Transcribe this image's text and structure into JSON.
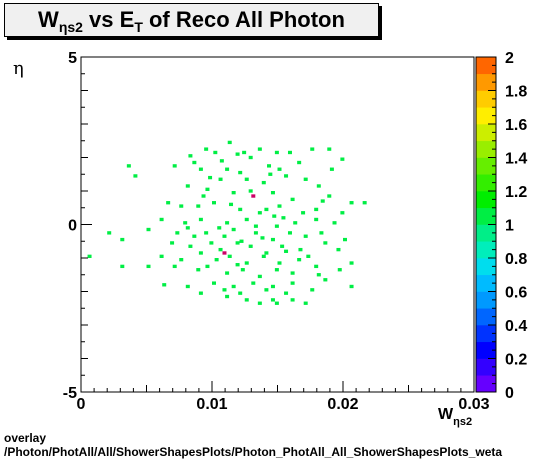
{
  "title": {
    "main": "W",
    "sub": "ηs2",
    "middle": " vs E",
    "sub2": "T",
    "rest": " of Reco All Photon"
  },
  "footer": {
    "line1": "overlay",
    "line2": "/Photon/PhotAll/All/ShowerShapesPlots/Photon_PhotAll_All_ShowerShapesPlots_weta"
  },
  "chart_data": {
    "type": "heatmap",
    "title": "W_ηs2 vs E_T of Reco All Photon",
    "xlabel": "W_ηs2",
    "ylabel": "η",
    "xlim": [
      0,
      0.03
    ],
    "ylim": [
      -5,
      5
    ],
    "x_ticks": [
      "0",
      "0.01",
      "0.02",
      "0.03"
    ],
    "y_ticks": [
      "-5",
      "0",
      "5"
    ],
    "colorbar": {
      "range": [
        0,
        2
      ],
      "ticks": [
        "0",
        "0.2",
        "0.4",
        "0.6",
        "0.8",
        "1",
        "1.2",
        "1.4",
        "1.6",
        "1.8",
        "2"
      ]
    },
    "grid": false,
    "entries": [
      {
        "x": 0.0094,
        "y": 2.2,
        "z": 1
      },
      {
        "x": 0.0101,
        "y": 2.1,
        "z": 1
      },
      {
        "x": 0.0112,
        "y": 2.4,
        "z": 1
      },
      {
        "x": 0.0118,
        "y": 2.05,
        "z": 1
      },
      {
        "x": 0.0123,
        "y": 2.1,
        "z": 1
      },
      {
        "x": 0.0082,
        "y": 2.0,
        "z": 1
      },
      {
        "x": 0.0085,
        "y": 1.8,
        "z": 1
      },
      {
        "x": 0.0135,
        "y": 2.2,
        "z": 1
      },
      {
        "x": 0.0148,
        "y": 2.1,
        "z": 1
      },
      {
        "x": 0.0158,
        "y": 2.1,
        "z": 1
      },
      {
        "x": 0.0175,
        "y": 2.2,
        "z": 1
      },
      {
        "x": 0.0188,
        "y": 2.2,
        "z": 1
      },
      {
        "x": 0.0198,
        "y": 1.9,
        "z": 1
      },
      {
        "x": 0.007,
        "y": 1.7,
        "z": 1
      },
      {
        "x": 0.0035,
        "y": 1.7,
        "z": 1
      },
      {
        "x": 0.004,
        "y": 1.4,
        "z": 1
      },
      {
        "x": 0.009,
        "y": 1.6,
        "z": 1
      },
      {
        "x": 0.011,
        "y": 1.6,
        "z": 1
      },
      {
        "x": 0.012,
        "y": 1.5,
        "z": 1
      },
      {
        "x": 0.0142,
        "y": 1.7,
        "z": 1
      },
      {
        "x": 0.015,
        "y": 1.6,
        "z": 1
      },
      {
        "x": 0.0165,
        "y": 1.8,
        "z": 1
      },
      {
        "x": 0.019,
        "y": 1.6,
        "z": 1
      },
      {
        "x": 0.0105,
        "y": 1.3,
        "z": 1
      },
      {
        "x": 0.0125,
        "y": 1.3,
        "z": 1
      },
      {
        "x": 0.0138,
        "y": 1.2,
        "z": 1
      },
      {
        "x": 0.0155,
        "y": 1.4,
        "z": 1
      },
      {
        "x": 0.017,
        "y": 1.3,
        "z": 1
      },
      {
        "x": 0.018,
        "y": 1.1,
        "z": 1
      },
      {
        "x": 0.0095,
        "y": 1.0,
        "z": 1
      },
      {
        "x": 0.008,
        "y": 1.1,
        "z": 1
      },
      {
        "x": 0.0115,
        "y": 0.9,
        "z": 1
      },
      {
        "x": 0.0128,
        "y": 0.95,
        "z": 1
      },
      {
        "x": 0.013,
        "y": 0.8,
        "z": 2
      },
      {
        "x": 0.0145,
        "y": 0.9,
        "z": 1
      },
      {
        "x": 0.016,
        "y": 0.7,
        "z": 1
      },
      {
        "x": 0.0188,
        "y": 0.8,
        "z": 1
      },
      {
        "x": 0.0205,
        "y": 0.6,
        "z": 1
      },
      {
        "x": 0.0215,
        "y": 0.6,
        "z": 1
      },
      {
        "x": 0.0065,
        "y": 0.6,
        "z": 1
      },
      {
        "x": 0.0075,
        "y": 0.5,
        "z": 1
      },
      {
        "x": 0.0088,
        "y": 0.5,
        "z": 1
      },
      {
        "x": 0.01,
        "y": 0.6,
        "z": 1
      },
      {
        "x": 0.012,
        "y": 0.4,
        "z": 1
      },
      {
        "x": 0.0135,
        "y": 0.3,
        "z": 1
      },
      {
        "x": 0.014,
        "y": 0.4,
        "z": 1
      },
      {
        "x": 0.015,
        "y": 0.5,
        "z": 1
      },
      {
        "x": 0.0168,
        "y": 0.3,
        "z": 1
      },
      {
        "x": 0.0178,
        "y": 0.4,
        "z": 1
      },
      {
        "x": 0.0198,
        "y": 0.3,
        "z": 1
      },
      {
        "x": 0.006,
        "y": 0.1,
        "z": 1
      },
      {
        "x": 0.0078,
        "y": 0.0,
        "z": 1
      },
      {
        "x": 0.009,
        "y": 0.1,
        "z": 1
      },
      {
        "x": 0.011,
        "y": 0.0,
        "z": 1
      },
      {
        "x": 0.0125,
        "y": 0.1,
        "z": 1
      },
      {
        "x": 0.0148,
        "y": -0.1,
        "z": 1
      },
      {
        "x": 0.0162,
        "y": 0.0,
        "z": 1
      },
      {
        "x": 0.0178,
        "y": 0.1,
        "z": 1
      },
      {
        "x": 0.0192,
        "y": 0.0,
        "z": 1
      },
      {
        "x": 0.002,
        "y": -0.3,
        "z": 1
      },
      {
        "x": 0.005,
        "y": -0.2,
        "z": 1
      },
      {
        "x": 0.0072,
        "y": -0.3,
        "z": 1
      },
      {
        "x": 0.0085,
        "y": -0.4,
        "z": 1
      },
      {
        "x": 0.0094,
        "y": -0.3,
        "z": 1
      },
      {
        "x": 0.0108,
        "y": -0.4,
        "z": 1
      },
      {
        "x": 0.0115,
        "y": -0.2,
        "z": 1
      },
      {
        "x": 0.0132,
        "y": -0.3,
        "z": 1
      },
      {
        "x": 0.0145,
        "y": -0.5,
        "z": 1
      },
      {
        "x": 0.0158,
        "y": -0.3,
        "z": 1
      },
      {
        "x": 0.017,
        "y": -0.4,
        "z": 1
      },
      {
        "x": 0.0182,
        "y": -0.3,
        "z": 1
      },
      {
        "x": 0.02,
        "y": -0.5,
        "z": 1
      },
      {
        "x": 0.003,
        "y": -0.5,
        "z": 1
      },
      {
        "x": 0.0068,
        "y": -0.6,
        "z": 1
      },
      {
        "x": 0.0082,
        "y": -0.7,
        "z": 1
      },
      {
        "x": 0.0098,
        "y": -0.6,
        "z": 1
      },
      {
        "x": 0.0105,
        "y": -0.8,
        "z": 1
      },
      {
        "x": 0.0118,
        "y": -0.6,
        "z": 1
      },
      {
        "x": 0.0128,
        "y": -0.7,
        "z": 1
      },
      {
        "x": 0.014,
        "y": -0.9,
        "z": 1
      },
      {
        "x": 0.0152,
        "y": -0.7,
        "z": 1
      },
      {
        "x": 0.0166,
        "y": -0.8,
        "z": 1
      },
      {
        "x": 0.0185,
        "y": -0.6,
        "z": 1
      },
      {
        "x": 0.006,
        "y": -1.0,
        "z": 1
      },
      {
        "x": 0.0075,
        "y": -1.1,
        "z": 1
      },
      {
        "x": 0.009,
        "y": -0.9,
        "z": 1
      },
      {
        "x": 0.0102,
        "y": -1.1,
        "z": 1
      },
      {
        "x": 0.0112,
        "y": -1.0,
        "z": 1
      },
      {
        "x": 0.0125,
        "y": -1.2,
        "z": 1
      },
      {
        "x": 0.0138,
        "y": -1.0,
        "z": 1
      },
      {
        "x": 0.015,
        "y": -1.2,
        "z": 1
      },
      {
        "x": 0.0165,
        "y": -1.1,
        "z": 1
      },
      {
        "x": 0.0172,
        "y": -1.0,
        "z": 1
      },
      {
        "x": 0.0205,
        "y": -1.2,
        "z": 1
      },
      {
        "x": 0.0005,
        "y": -1.0,
        "z": 1
      },
      {
        "x": 0.007,
        "y": -1.3,
        "z": 1
      },
      {
        "x": 0.0088,
        "y": -1.4,
        "z": 1
      },
      {
        "x": 0.0095,
        "y": -1.3,
        "z": 1
      },
      {
        "x": 0.011,
        "y": -1.5,
        "z": 1
      },
      {
        "x": 0.0122,
        "y": -1.4,
        "z": 1
      },
      {
        "x": 0.0135,
        "y": -1.6,
        "z": 1
      },
      {
        "x": 0.0148,
        "y": -1.4,
        "z": 1
      },
      {
        "x": 0.016,
        "y": -1.5,
        "z": 1
      },
      {
        "x": 0.0178,
        "y": -1.3,
        "z": 1
      },
      {
        "x": 0.003,
        "y": -1.3,
        "z": 1
      },
      {
        "x": 0.008,
        "y": -1.9,
        "z": 1
      },
      {
        "x": 0.01,
        "y": -1.8,
        "z": 1
      },
      {
        "x": 0.0115,
        "y": -1.9,
        "z": 1
      },
      {
        "x": 0.013,
        "y": -1.8,
        "z": 1
      },
      {
        "x": 0.0145,
        "y": -1.9,
        "z": 1
      },
      {
        "x": 0.016,
        "y": -1.8,
        "z": 1
      },
      {
        "x": 0.0185,
        "y": -1.7,
        "z": 1
      },
      {
        "x": 0.0062,
        "y": -1.85,
        "z": 1
      },
      {
        "x": 0.009,
        "y": -2.1,
        "z": 1
      },
      {
        "x": 0.0108,
        "y": -2.0,
        "z": 1
      },
      {
        "x": 0.012,
        "y": -2.1,
        "z": 1
      },
      {
        "x": 0.014,
        "y": -2.0,
        "z": 1
      },
      {
        "x": 0.0155,
        "y": -2.1,
        "z": 1
      },
      {
        "x": 0.0175,
        "y": -2.0,
        "z": 1
      },
      {
        "x": 0.0205,
        "y": -1.9,
        "z": 1
      },
      {
        "x": 0.011,
        "y": -2.2,
        "z": 1
      },
      {
        "x": 0.0125,
        "y": -2.3,
        "z": 1
      },
      {
        "x": 0.0135,
        "y": -2.4,
        "z": 1
      },
      {
        "x": 0.0145,
        "y": -2.3,
        "z": 1
      },
      {
        "x": 0.0148,
        "y": -2.4,
        "z": 1
      },
      {
        "x": 0.016,
        "y": -2.3,
        "z": 1
      },
      {
        "x": 0.017,
        "y": -2.4,
        "z": 1
      },
      {
        "x": 0.0092,
        "y": 0.8,
        "z": 1
      },
      {
        "x": 0.0113,
        "y": 0.55,
        "z": 1
      },
      {
        "x": 0.0146,
        "y": 0.2,
        "z": 1
      },
      {
        "x": 0.0132,
        "y": -0.1,
        "z": 1
      },
      {
        "x": 0.0104,
        "y": -0.15,
        "z": 1
      },
      {
        "x": 0.0121,
        "y": -0.55,
        "z": 1
      },
      {
        "x": 0.0137,
        "y": -0.45,
        "z": 1
      },
      {
        "x": 0.0155,
        "y": -0.85,
        "z": 1
      },
      {
        "x": 0.0118,
        "y": -1.25,
        "z": 1
      },
      {
        "x": 0.0106,
        "y": 1.85,
        "z": 1
      },
      {
        "x": 0.0128,
        "y": 1.95,
        "z": 1
      },
      {
        "x": 0.0143,
        "y": 1.45,
        "z": 1
      },
      {
        "x": 0.0097,
        "y": 1.35,
        "z": 1
      },
      {
        "x": 0.0183,
        "y": 0.65,
        "z": 1
      },
      {
        "x": 0.0195,
        "y": -0.8,
        "z": 1
      },
      {
        "x": 0.008,
        "y": -0.15,
        "z": 1
      },
      {
        "x": 0.0153,
        "y": 0.15,
        "z": 1
      },
      {
        "x": 0.0108,
        "y": -0.9,
        "z": 2
      },
      {
        "x": 0.0196,
        "y": -1.4,
        "z": 1
      },
      {
        "x": 0.005,
        "y": -1.3,
        "z": 1
      },
      {
        "x": 0.018,
        "y": -1.55,
        "z": 1
      }
    ]
  }
}
